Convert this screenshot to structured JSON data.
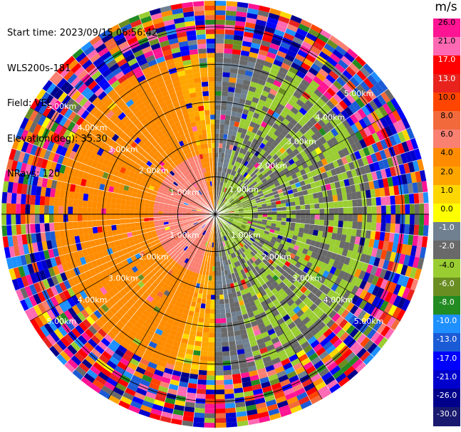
{
  "info": {
    "start_time": "Start time: 2023/09/15 06:56:42",
    "station": "WLS200s-181",
    "field": "Field: VEL",
    "elevation": "Elevation(deg): 35.30",
    "nrays": "NRays: 120"
  },
  "colorbar": {
    "unit": "m/s",
    "ticks": [
      "26.0",
      "21.0",
      "17.0",
      "13.0",
      "10.0",
      "8.0",
      "6.0",
      "4.0",
      "2.0",
      "1.0",
      "0.0",
      "-1.0",
      "-2.0",
      "-4.0",
      "-6.0",
      "-8.0",
      "-10.0",
      "-13.0",
      "-17.0",
      "-21.0",
      "-26.0",
      "-30.0"
    ],
    "colors": [
      "#ff1493",
      "#ff69b4",
      "#ff0000",
      "#e8231e",
      "#ff4500",
      "#f26a3c",
      "#fa8072",
      "#ff8c00",
      "#ffa500",
      "#ffd700",
      "#ffff00",
      "#708090",
      "#696969",
      "#9acd32",
      "#6b8e23",
      "#228b22",
      "#1e90ff",
      "#1c5bd6",
      "#0000ff",
      "#0000cd",
      "#00008b",
      "#191970"
    ]
  },
  "chart_data": {
    "type": "heatmap",
    "projection": "polar PPI",
    "field": "VEL",
    "unit": "m/s",
    "nrays": 120,
    "range_rings_km": [
      1.0,
      2.0,
      3.0,
      4.0,
      5.0
    ],
    "ring_labels": [
      "1.00km",
      "2.00km",
      "3.00km",
      "4.00km",
      "5.00km"
    ],
    "grid": true,
    "velocity_pattern": {
      "west_sector_ms": 5,
      "west_outer_ms": 3,
      "east_sector_ms": -4,
      "east_inner_ms": -6,
      "noise_beyond_km": 4.3
    }
  }
}
